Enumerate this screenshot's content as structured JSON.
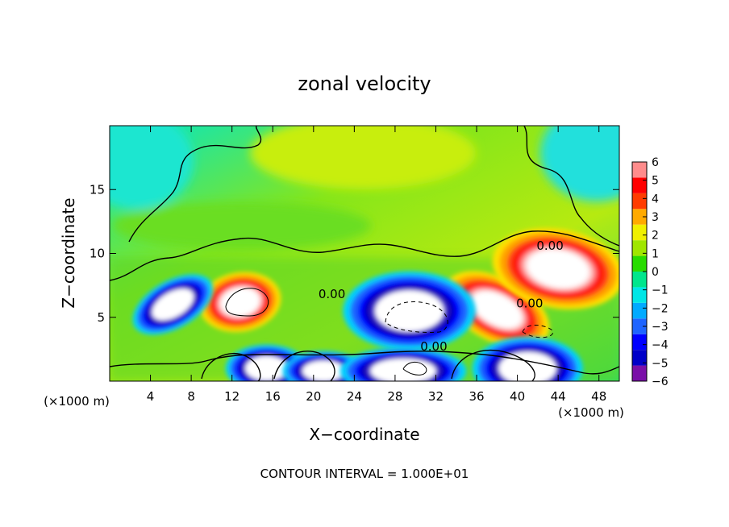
{
  "chart_data": {
    "type": "heatmap",
    "title": "zonal velocity",
    "xlabel": "X−coordinate",
    "ylabel": "Z−coordinate",
    "x_unit_label": "(×1000 m)",
    "x_unit_label_right": "(×1000 m)",
    "footer": "CONTOUR INTERVAL = 1.000E+01",
    "xlim": [
      0,
      50
    ],
    "ylim": [
      0,
      20
    ],
    "x_ticks": [
      4,
      8,
      12,
      16,
      20,
      24,
      28,
      32,
      36,
      40,
      44,
      48
    ],
    "y_ticks": [
      5,
      10,
      15
    ],
    "colorbar": {
      "min": -6,
      "max": 6,
      "labels": [
        "6",
        "5",
        "4",
        "3",
        "2",
        "1",
        "0",
        "−1",
        "−2",
        "−3",
        "−4",
        "−5",
        "−6"
      ],
      "colors": [
        "#7a0fa8",
        "#0000c8",
        "#0000ff",
        "#1e64ff",
        "#00aaff",
        "#00e6e6",
        "#00e68c",
        "#28dc00",
        "#a0e600",
        "#f0f000",
        "#ffaa00",
        "#ff3c00",
        "#ff0000",
        "#ff8c8c"
      ]
    },
    "contour_labels": [
      {
        "text": "0.00",
        "x": 43.2,
        "y": 10.6
      },
      {
        "text": "0.00",
        "x": 21.8,
        "y": 6.8
      },
      {
        "text": "0.00",
        "x": 41.2,
        "y": 6.1
      },
      {
        "text": "0.00",
        "x": 31.8,
        "y": 2.7
      }
    ],
    "features": [
      {
        "sign": "positive",
        "cx": 12.8,
        "cy": 6.2,
        "rx": 2.6,
        "ry": 1.5,
        "rot": -10,
        "note": "white core (>6)"
      },
      {
        "sign": "positive",
        "cx": 38.0,
        "cy": 5.6,
        "rx": 3.6,
        "ry": 1.6,
        "rot": 28
      },
      {
        "sign": "positive",
        "cx": 44.0,
        "cy": 8.8,
        "rx": 4.2,
        "ry": 2.0,
        "rot": 10
      },
      {
        "sign": "negative",
        "cx": 6.2,
        "cy": 6.0,
        "rx": 2.8,
        "ry": 1.2,
        "rot": -30
      },
      {
        "sign": "negative",
        "cx": 29.4,
        "cy": 5.5,
        "rx": 4.2,
        "ry": 2.0,
        "rot": 0
      },
      {
        "sign": "negative",
        "cx": 15.4,
        "cy": 1.0,
        "rx": 2.6,
        "ry": 1.2,
        "rot": 0
      },
      {
        "sign": "negative",
        "cx": 21.0,
        "cy": 0.8,
        "rx": 2.6,
        "ry": 1.0,
        "rot": 0
      },
      {
        "sign": "negative",
        "cx": 28.8,
        "cy": 0.8,
        "rx": 4.0,
        "ry": 1.2,
        "rot": 0
      },
      {
        "sign": "negative",
        "cx": 41.0,
        "cy": 1.0,
        "rx": 3.5,
        "ry": 1.6,
        "rot": 0
      }
    ]
  }
}
